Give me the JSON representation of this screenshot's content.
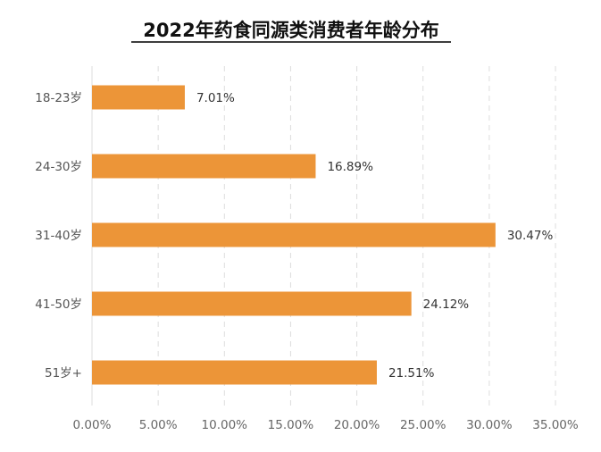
{
  "chart_data": {
    "type": "bar",
    "orientation": "horizontal",
    "title": "2022年药食同源类消费者年龄分布",
    "categories": [
      "18-23岁",
      "24-30岁",
      "31-40岁",
      "41-50岁",
      "51岁+"
    ],
    "values": [
      7.01,
      16.89,
      30.47,
      24.12,
      21.51
    ],
    "value_labels": [
      "7.01%",
      "16.89%",
      "30.47%",
      "24.12%",
      "21.51%"
    ],
    "xlim": [
      0,
      35
    ],
    "x_ticks": [
      0,
      5,
      10,
      15,
      20,
      25,
      30,
      35
    ],
    "x_tick_labels": [
      "0.00%",
      "5.00%",
      "10.00%",
      "15.00%",
      "20.00%",
      "25.00%",
      "30.00%",
      "35.00%"
    ],
    "grid": true,
    "bar_color": "#EC9538",
    "title_underline_color": "#222222"
  }
}
